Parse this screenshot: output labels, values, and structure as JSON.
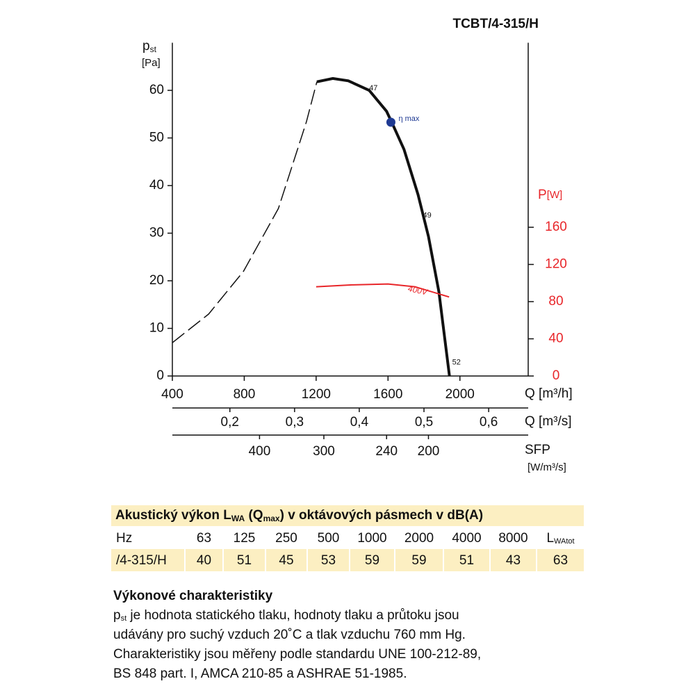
{
  "chart_data": {
    "type": "line",
    "title": "TCBT/4-315/H",
    "y_label": {
      "symbol": "p",
      "sub": "st",
      "unit": "[Pa]"
    },
    "y2_label": {
      "symbol": "P",
      "unit": "[W]",
      "color": "#e8262a"
    },
    "x_label": "Q [m³/h]",
    "x2_label": "Q [m³/s]",
    "sfp_label": "SFP",
    "sfp_unit": "[W/m³/s]",
    "xlim": [
      400,
      2380
    ],
    "xticks": [
      400,
      800,
      1200,
      1600,
      2000
    ],
    "ylim": [
      0,
      70
    ],
    "yticks": [
      0,
      10,
      20,
      30,
      40,
      50,
      60
    ],
    "y2lim": [
      0,
      358.5
    ],
    "y2ticks": [
      0,
      40,
      80,
      120,
      160
    ],
    "x2lim": [
      0.1111,
      0.6611
    ],
    "x2ticks": [
      {
        "value": 0.2,
        "label": "0,2"
      },
      {
        "value": 0.3,
        "label": "0,3"
      },
      {
        "value": 0.4,
        "label": "0,4"
      },
      {
        "value": 0.5,
        "label": "0,5"
      },
      {
        "value": 0.6,
        "label": "0,6"
      }
    ],
    "sfp_ticks": [
      {
        "value": 400,
        "q": 885
      },
      {
        "value": 300,
        "q": 1243
      },
      {
        "value": 240,
        "q": 1592
      },
      {
        "value": 200,
        "q": 1825
      }
    ],
    "series": [
      {
        "color": "#111111",
        "style": "solid",
        "x": [
          1204,
          1293,
          1379,
          1495,
          1592,
          1623,
          1689,
          1767,
          1825,
          1883,
          1942
        ],
        "values": [
          61.8,
          62.5,
          62.0,
          60.0,
          55.6,
          53.1,
          47.6,
          38.1,
          29.3,
          17.7,
          0
        ]
      },
      {
        "color": "#111111",
        "style": "dashed",
        "x": [
          400,
          602,
          796,
          990,
          1146,
          1204
        ],
        "values": [
          7.0,
          13.0,
          22.0,
          35.2,
          53.4,
          61.8
        ]
      },
      {
        "name": "400V",
        "color": "#e8262a",
        "style": "solid",
        "axis": "y2",
        "x": [
          1200,
          1400,
          1600,
          1750,
          1940
        ],
        "values": [
          96,
          98,
          99,
          96,
          85
        ]
      }
    ],
    "annotations": [
      {
        "text": "47",
        "x": 1495,
        "y": 60.4
      },
      {
        "text": "49",
        "x": 1794,
        "y": 33.7
      },
      {
        "text": "52",
        "x": 1957,
        "y": 2.8
      }
    ],
    "eta_max": {
      "label": "η max",
      "x": 1616,
      "y": 53.3,
      "color": "#1f3a93"
    }
  },
  "table": {
    "title": [
      "Akustický výkon L",
      "WA",
      " (Q",
      "max",
      ") v oktávových pásmech v dB(A)"
    ],
    "header": [
      "Hz",
      "63",
      "125",
      "250",
      "500",
      "1000",
      "2000",
      "4000",
      "8000"
    ],
    "header_last": {
      "symbol": "L",
      "sub": "WAtot"
    },
    "rows": [
      [
        "/4-315/H",
        "40",
        "51",
        "45",
        "53",
        "59",
        "59",
        "51",
        "43",
        "63"
      ]
    ]
  },
  "notes": {
    "heading": "Výkonové charakteristiky",
    "first_line": {
      "symbol": "p",
      "sub": "st",
      "rest": " je hodnota statického tlaku, hodnoty tlaku a průtoku jsou"
    },
    "lines": [
      "udávány pro suchý vzduch 20˚C a tlak vzduchu 760 mm Hg.",
      "Charakteristiky jsou měřeny podle standardu UNE 100-212-89,",
      "BS 848 part. I, AMCA 210-85 a ASHRAE 51-1985."
    ]
  }
}
